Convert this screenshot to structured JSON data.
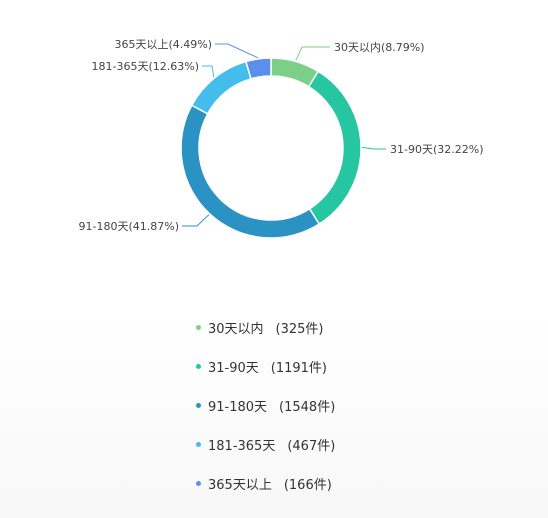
{
  "chart_data": {
    "type": "pie",
    "variant": "donut",
    "slices": [
      {
        "label": "30天以内",
        "count_label": "(325件)",
        "value": 325,
        "percent_label": "30天以内(8.79%)",
        "color": "#7ccf88"
      },
      {
        "label": "31-90天",
        "count_label": "(1191件)",
        "value": 1191,
        "percent_label": "31-90天(32.22%)",
        "color": "#26c6a2"
      },
      {
        "label": "91-180天",
        "count_label": "(1548件)",
        "value": 1548,
        "percent_label": "91-180天(41.87%)",
        "color": "#2a93c4"
      },
      {
        "label": "181-365天",
        "count_label": "(467件)",
        "value": 467,
        "percent_label": "181-365天(12.63%)",
        "color": "#45bdec"
      },
      {
        "label": "365天以上",
        "count_label": "(166件)",
        "value": 166,
        "percent_label": "365天以上(4.49%)",
        "color": "#5a8ff0"
      }
    ],
    "legend_position": "bottom"
  }
}
